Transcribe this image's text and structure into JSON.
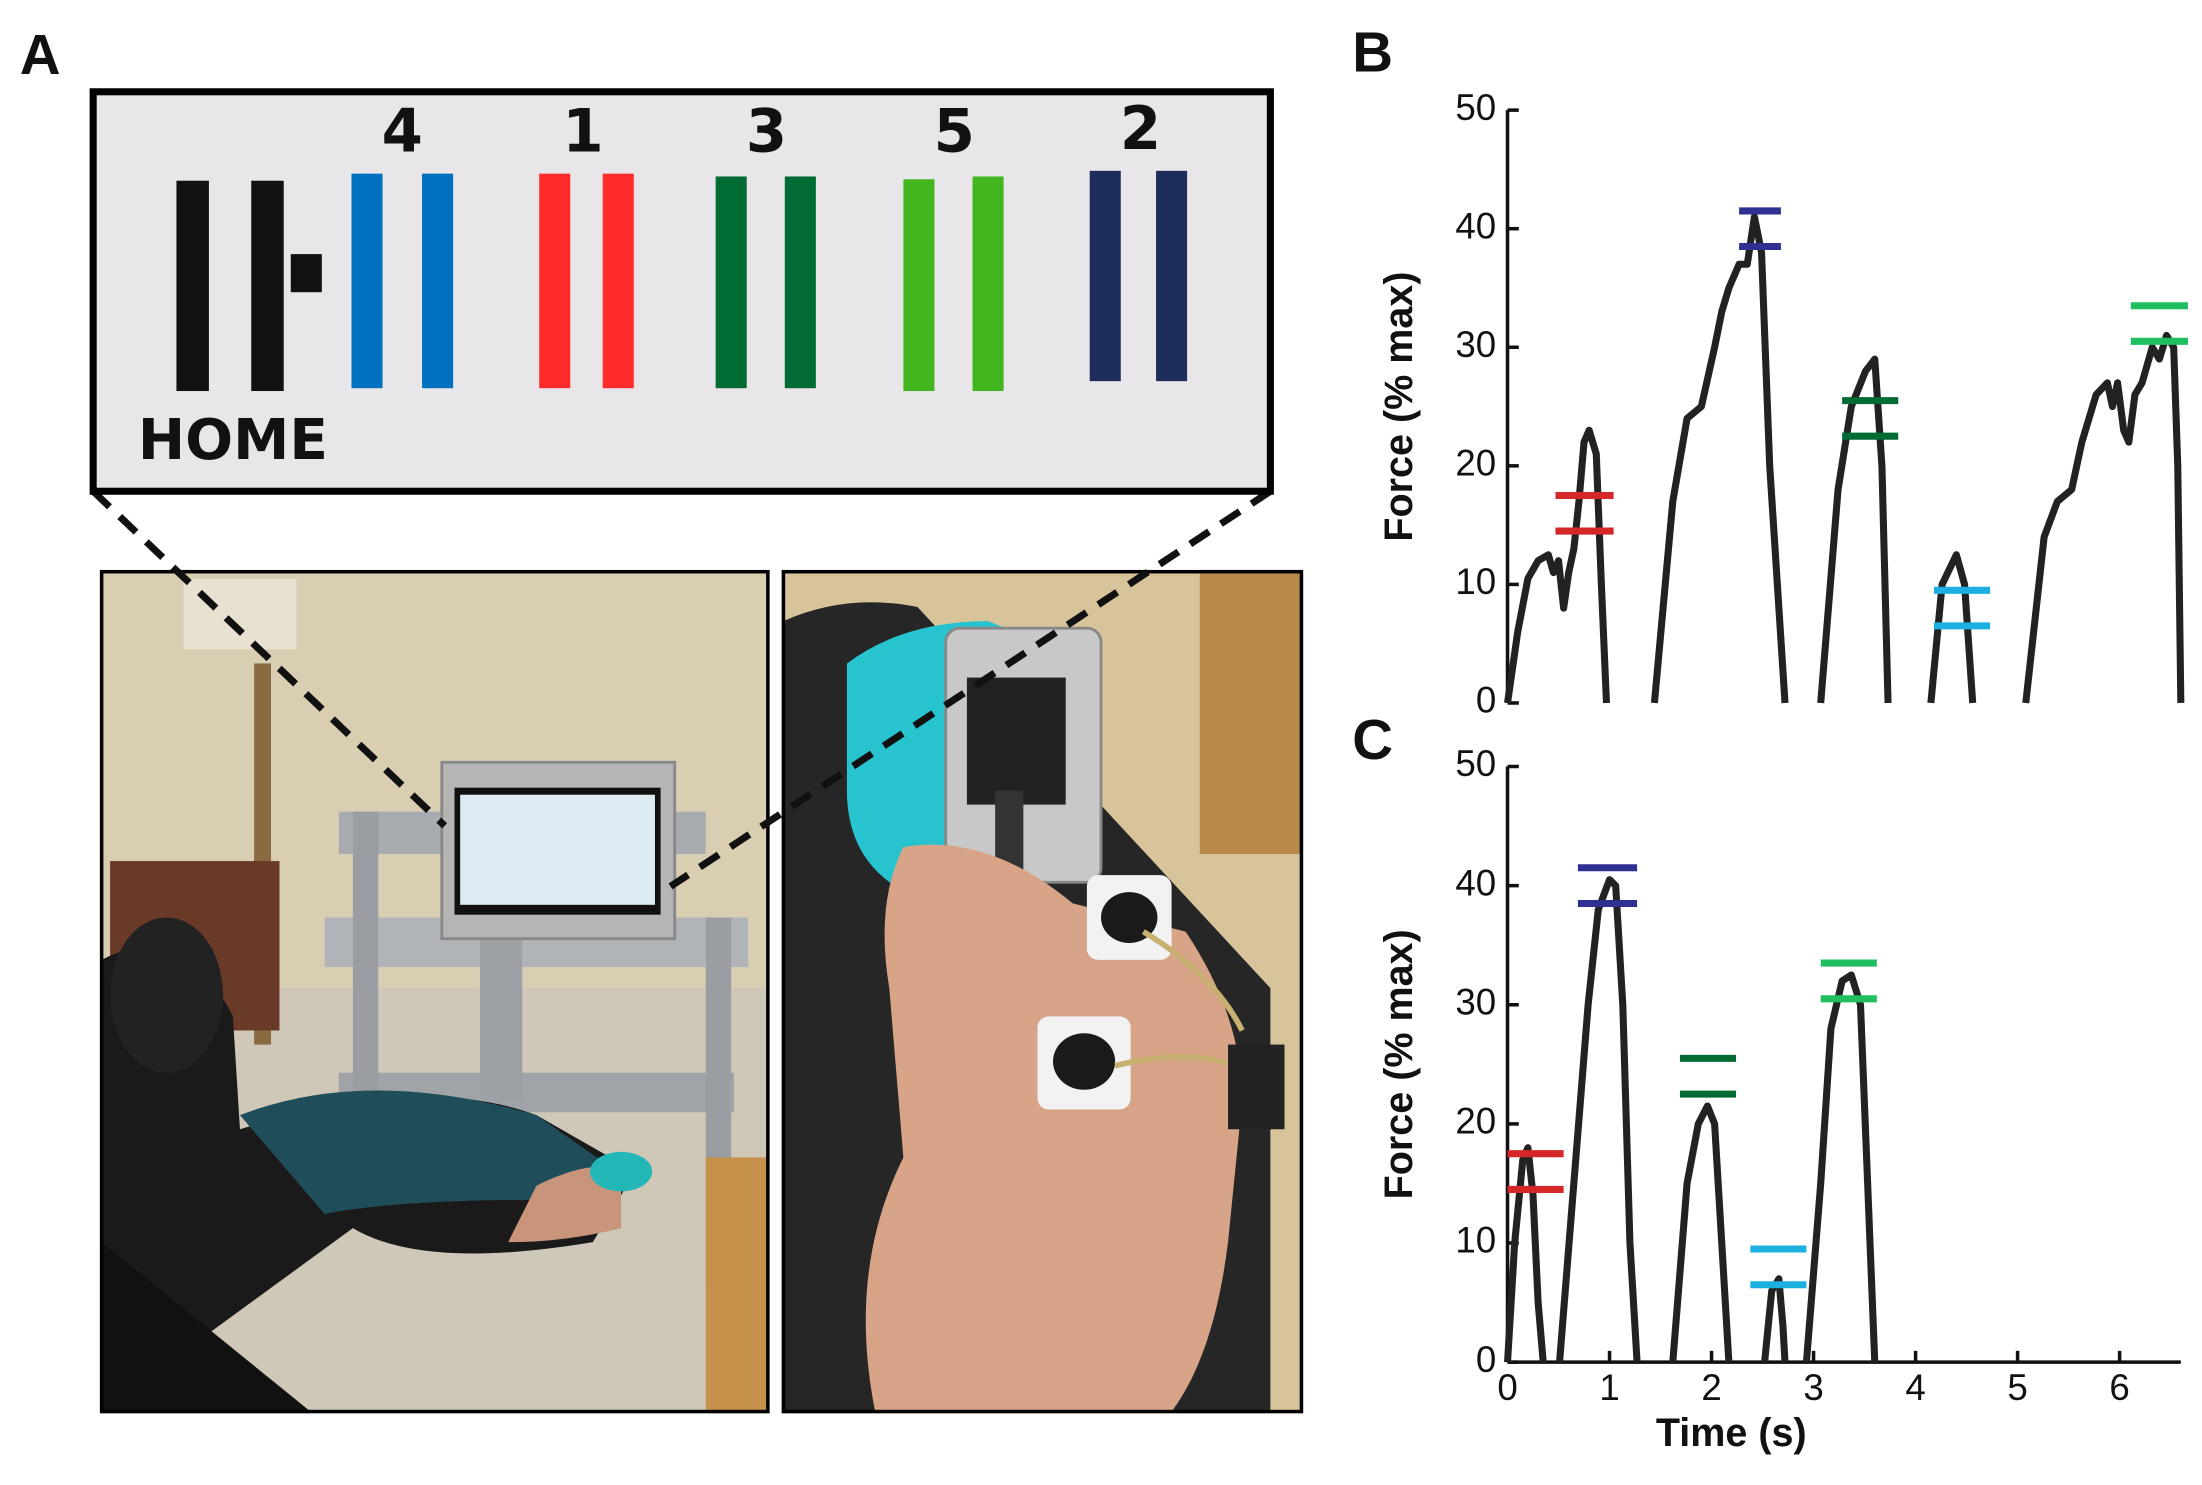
{
  "panel_labels": [
    "A",
    "B",
    "C"
  ],
  "diagram": {
    "target_numbers": [
      "4",
      "1",
      "3",
      "5",
      "2"
    ],
    "home_label": "HOME"
  },
  "chart_data": [
    {
      "type": "line",
      "ylabel": "Force (% max)",
      "xlim": [
        0,
        6.6
      ],
      "ylim": [
        0,
        50
      ],
      "yticks": [
        0,
        10,
        20,
        30,
        40,
        50
      ],
      "series": [
        {
          "color": "#222222",
          "x": [
            0,
            0.1,
            0.2,
            0.3,
            0.4,
            0.45,
            0.5,
            0.55,
            0.6,
            0.65,
            0.7,
            0.75,
            0.8,
            0.87,
            0.92,
            0.97,
            null,
            1.44,
            1.62,
            1.76,
            1.9,
            2.03,
            2.1,
            2.17,
            2.27,
            2.35,
            2.42,
            2.49,
            2.57,
            2.72,
            null,
            3.07,
            3.24,
            3.37,
            3.51,
            3.6,
            3.67,
            3.73,
            null,
            4.15,
            4.26,
            4.4,
            4.48,
            4.56,
            null,
            5.08,
            5.26,
            5.39,
            5.53,
            5.63,
            5.77,
            5.88,
            5.93,
            5.98,
            6.04,
            6.09,
            6.15,
            6.22,
            6.32,
            6.39,
            6.46,
            6.53,
            6.57,
            6.6
          ],
          "values": [
            0,
            6,
            10.5,
            12,
            12.5,
            11,
            12,
            8,
            11,
            13,
            17,
            22,
            23,
            21,
            10,
            0,
            null,
            0,
            17,
            24,
            25,
            30,
            33,
            35,
            37,
            37,
            41,
            38,
            20,
            0,
            null,
            0,
            18,
            25,
            28,
            29,
            20,
            0,
            null,
            0,
            10,
            12.5,
            10,
            0,
            null,
            0,
            14,
            17,
            18,
            22,
            26,
            27,
            25,
            27,
            23,
            22,
            26,
            27,
            30,
            29,
            31,
            30,
            20,
            0
          ]
        }
      ],
      "targets": [
        {
          "color": "#d62728",
          "values": [
            14.5,
            17.5
          ],
          "x": [
            0.47,
            1.04
          ]
        },
        {
          "color": "#2e3192",
          "values": [
            38.5,
            41.5
          ],
          "x": [
            2.27,
            2.68
          ]
        },
        {
          "color": "#006b33",
          "values": [
            22.5,
            25.5
          ],
          "x": [
            3.28,
            3.83
          ]
        },
        {
          "color": "#1cb0e0",
          "values": [
            6.5,
            9.5
          ],
          "x": [
            4.18,
            4.73
          ]
        },
        {
          "color": "#1fbf5f",
          "values": [
            30.5,
            33.5
          ],
          "x": [
            6.11,
            6.67
          ]
        }
      ]
    },
    {
      "type": "line",
      "ylabel": "Force (% max)",
      "xlabel": "Time (s)",
      "xlim": [
        0,
        6.6
      ],
      "ylim": [
        0,
        50
      ],
      "yticks": [
        0,
        10,
        20,
        30,
        40,
        50
      ],
      "xticks": [
        0,
        1,
        2,
        3,
        4,
        5,
        6
      ],
      "series": [
        {
          "color": "#222222",
          "x": [
            0,
            0.07,
            0.15,
            0.2,
            0.25,
            0.3,
            0.35,
            null,
            0.51,
            0.65,
            0.79,
            0.89,
            1.0,
            1.06,
            1.13,
            1.2,
            1.27,
            null,
            1.62,
            1.76,
            1.87,
            1.96,
            2.03,
            2.1,
            2.17,
            null,
            2.52,
            2.59,
            2.66,
            2.7,
            2.72,
            null,
            2.93,
            3.07,
            3.17,
            3.28,
            3.37,
            3.46,
            3.53,
            3.6
          ],
          "values": [
            0,
            10,
            17,
            18,
            14,
            5,
            0,
            null,
            0,
            15,
            30,
            38,
            40.5,
            40,
            30,
            10,
            0,
            null,
            0,
            15,
            20,
            21.5,
            20,
            10,
            0,
            null,
            0,
            6,
            7,
            3,
            0,
            null,
            0,
            15,
            28,
            32,
            32.5,
            30,
            15,
            0
          ]
        }
      ],
      "targets": [
        {
          "color": "#d62728",
          "values": [
            14.5,
            17.5
          ],
          "x": [
            0,
            0.55
          ]
        },
        {
          "color": "#2e3192",
          "values": [
            38.5,
            41.5
          ],
          "x": [
            0.69,
            1.27
          ]
        },
        {
          "color": "#006b33",
          "values": [
            22.5,
            25.5
          ],
          "x": [
            1.69,
            2.24
          ]
        },
        {
          "color": "#1cb0e0",
          "values": [
            6.5,
            9.5
          ],
          "x": [
            2.38,
            2.93
          ]
        },
        {
          "color": "#1fbf5f",
          "values": [
            30.5,
            33.5
          ],
          "x": [
            3.07,
            3.62
          ]
        }
      ]
    }
  ]
}
